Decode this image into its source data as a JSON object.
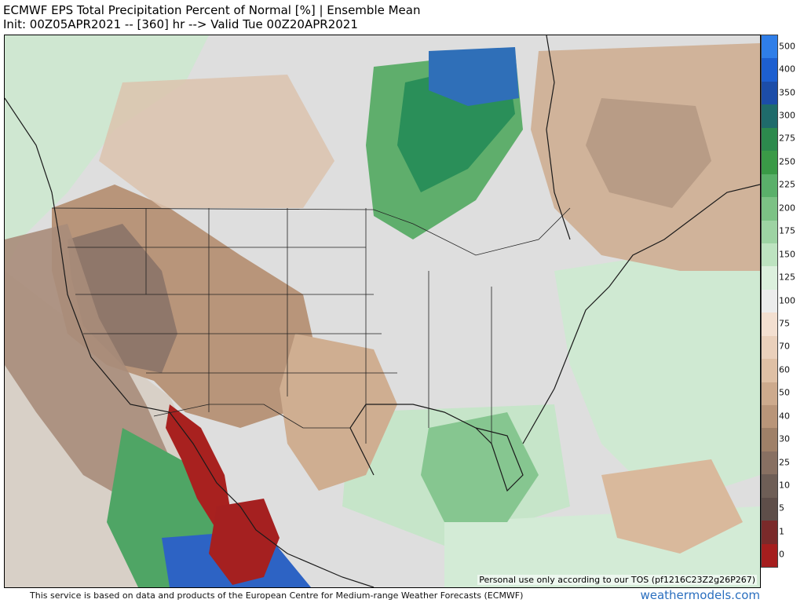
{
  "header": {
    "title": "ECMWF EPS Total Precipitation Percent of Normal [%] | Ensemble Mean",
    "subtitle": "Init: 00Z05APR2021 -- [360] hr --> Valid Tue 00Z20APR2021"
  },
  "map": {
    "tos_notice": "Personal use only according to our TOS (pf1216C23Z2g26P267)"
  },
  "colorbar": {
    "labels": [
      "500",
      "400",
      "350",
      "300",
      "275",
      "250",
      "225",
      "200",
      "175",
      "150",
      "125",
      "100",
      "75",
      "70",
      "60",
      "50",
      "40",
      "30",
      "25",
      "10",
      "5",
      "1",
      "0"
    ],
    "colors": [
      "#2f7ee8",
      "#1d5fd0",
      "#1c4da8",
      "#1f6b6b",
      "#2c8a4d",
      "#3a9a47",
      "#5ab06a",
      "#7cc285",
      "#9dd3a3",
      "#bde3c0",
      "#dcf0dd",
      "#ececec",
      "#f3dfd0",
      "#ead0bb",
      "#dfc0a5",
      "#cdaa8d",
      "#b99579",
      "#9f8068",
      "#887062",
      "#6e5e56",
      "#5e4e49",
      "#7a2a2a",
      "#a51e1e"
    ]
  },
  "footer": {
    "attribution": "This service is based on data and products of the European Centre for Medium-range Weather Forecasts (ECMWF)",
    "brand": "weathermodels.com"
  }
}
